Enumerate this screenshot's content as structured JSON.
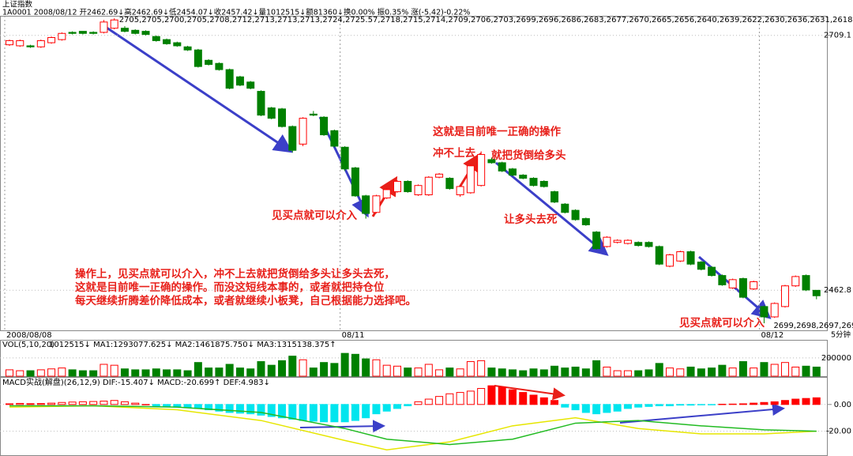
{
  "header": {
    "title": "上证指数",
    "info": "1A0001 2008/08/12 开2462.69↓高2462.69↓低2454.07↓收2457.42↓量1012515↓额81360↓换0.00% 振0.35% 涨(-5.42)-0.22%",
    "period": "5分钟"
  },
  "annotations": {
    "correct": "这就是目前唯一正确的操作",
    "fail": "冲不上去",
    "dump": "就把货倒给多头",
    "die": "让多头去死",
    "buy1": "见买点就可以介入",
    "buy2": "见买点就可以介入",
    "notes": [
      "操作上，见买点就可以介入，冲不上去就把货倒给多头让多头去死，",
      "这就是目前唯一正确的操作。而没这短线本事的，或者就把持仓位",
      "每天继续折腾差价降低成本，或者就继续小板凳，自己根据能力选择吧。"
    ]
  },
  "chart_data": [
    {
      "type": "candlestick",
      "up_color": "#ff0000",
      "down_color": "#008000",
      "ylim": [
        2424,
        2728
      ],
      "yticks": [
        2709.1,
        2462.8
      ],
      "high": [
        2705,
        2705,
        2700,
        2705,
        2708,
        2712,
        2713,
        2713,
        2713,
        2724,
        2725.57,
        2718,
        2715,
        2714,
        2709,
        2706,
        2703,
        2699,
        2696,
        2686,
        2683,
        2677,
        2670,
        2665,
        2656,
        2640,
        2639,
        2622,
        2630,
        2636,
        2631,
        2618,
        2602,
        2582,
        2555,
        2555,
        2561,
        2569,
        2569,
        2565,
        2573,
        2576,
        2572,
        2564,
        2584,
        2597,
        2591,
        2587,
        2581,
        2575,
        2572,
        2569,
        2559,
        2547,
        2541,
        2533,
        2520,
        2515,
        2512,
        2512,
        2510,
        2510,
        2506,
        2498,
        2501,
        2501,
        2491,
        2486,
        2478,
        2474,
        2475,
        2472,
        2448,
        2451,
        2468,
        2477,
        2478,
        2462.69
      ],
      "low": [
        2699,
        2698,
        2697,
        2697,
        2701,
        2704,
        2710,
        2710,
        2710,
        2711,
        2715,
        2712,
        2710,
        2709,
        2703,
        2700,
        2698,
        2694,
        2678,
        2680,
        2675,
        2657,
        2660,
        2657,
        2631,
        2628,
        2620,
        2596,
        2602,
        2631,
        2612,
        2601,
        2578,
        2553,
        2532,
        2537,
        2551,
        2557,
        2557,
        2554,
        2554,
        2571,
        2560,
        2553,
        2556,
        2563,
        2585,
        2577,
        2573,
        2570,
        2563,
        2562,
        2547,
        2537,
        2530,
        2525,
        2502,
        2504,
        2508,
        2507,
        2505,
        2504,
        2487,
        2485,
        2490,
        2487,
        2482,
        2476,
        2467,
        2464,
        2455,
        2463,
        2430.85,
        2436,
        2446,
        2466,
        2462,
        2454.07
      ],
      "categories": [
        "2008/08/08",
        null,
        null,
        null,
        null,
        null,
        null,
        null,
        null,
        null,
        null,
        null,
        null,
        null,
        null,
        null,
        null,
        null,
        null,
        null,
        null,
        null,
        null,
        null,
        null,
        null,
        null,
        null,
        null,
        null,
        null,
        null,
        "08/11",
        null,
        null,
        null,
        null,
        null,
        null,
        null,
        null,
        null,
        null,
        null,
        null,
        null,
        null,
        null,
        null,
        null,
        null,
        null,
        null,
        null,
        null,
        null,
        null,
        null,
        null,
        null,
        null,
        null,
        null,
        null,
        null,
        null,
        null,
        null,
        null,
        null,
        null,
        null,
        "08/12",
        null,
        null,
        null,
        null,
        null
      ],
      "open": [
        2700,
        2699,
        2699,
        2698,
        2702,
        2705,
        2712,
        2713,
        2712,
        2712,
        2716,
        2716,
        2714,
        2713,
        2708,
        2705,
        2702,
        2698,
        2695,
        2685,
        2682,
        2676,
        2669,
        2664,
        2655,
        2639,
        2638,
        2621,
        2604,
        2633,
        2630,
        2617,
        2601,
        2581,
        2554,
        2538,
        2552,
        2558,
        2568,
        2555,
        2555,
        2572,
        2571,
        2555,
        2557,
        2564,
        2589,
        2586,
        2580,
        2574,
        2571,
        2568,
        2558,
        2546,
        2540,
        2532,
        2519,
        2505,
        2509,
        2508,
        2509,
        2509,
        2505,
        2486,
        2491,
        2500,
        2490,
        2485,
        2477,
        2465,
        2474,
        2464,
        2447,
        2437,
        2447,
        2467,
        2477,
        2462.69
      ],
      "close": [
        2704,
        2704,
        2698,
        2704,
        2707,
        2711,
        2711,
        2711,
        2711,
        2722,
        2724,
        2713,
        2711,
        2710,
        2704,
        2701,
        2699,
        2695,
        2679,
        2681,
        2676,
        2658,
        2661,
        2658,
        2632,
        2629,
        2621,
        2598,
        2629,
        2632,
        2613,
        2602,
        2580,
        2554,
        2537,
        2554,
        2560,
        2568,
        2558,
        2564,
        2572,
        2575,
        2561,
        2563,
        2583,
        2594,
        2586,
        2578,
        2574,
        2571,
        2564,
        2563,
        2548,
        2538,
        2531,
        2526,
        2503,
        2514,
        2511,
        2511,
        2506,
        2505,
        2488,
        2497,
        2500,
        2488,
        2483,
        2477,
        2468,
        2473,
        2456,
        2471,
        2437,
        2450,
        2467,
        2476,
        2463,
        2457.42
      ]
    },
    {
      "type": "bar",
      "title": "VOL(5,10,20)",
      "info": "1012515↓ MA1:1293077.625↓ MA2:1461875.750↓ MA3:1315138.375↑",
      "ylim": [
        0,
        390000
      ],
      "yticks": [
        200000
      ],
      "values": [
        70000,
        60000,
        60000,
        70000,
        80000,
        90000,
        70000,
        60000,
        60000,
        130000,
        120000,
        80000,
        70000,
        70000,
        80000,
        70000,
        70000,
        60000,
        150000,
        90000,
        90000,
        130000,
        90000,
        80000,
        160000,
        120000,
        170000,
        220000,
        180000,
        90000,
        150000,
        140000,
        250000,
        240000,
        190000,
        180000,
        120000,
        110000,
        90000,
        90000,
        130000,
        70000,
        90000,
        80000,
        160000,
        170000,
        90000,
        80000,
        70000,
        60000,
        80000,
        70000,
        110000,
        90000,
        100000,
        80000,
        170000,
        100000,
        60000,
        60000,
        60000,
        70000,
        140000,
        90000,
        80000,
        100000,
        80000,
        90000,
        120000,
        90000,
        160000,
        90000,
        150000,
        130000,
        150000,
        100000,
        110000,
        100000
      ]
    },
    {
      "type": "macd",
      "title": "MACD实战(解盘)(26,12,9)",
      "info": "DIF:-15.407↓ MACD:-20.699↑ DEF:4.983↓",
      "pos_color": "#ff0000",
      "neg_color": "#00e5ee",
      "ylim": [
        -38,
        20
      ],
      "yticks": [
        {
          "value": 0,
          "label": "0.00"
        },
        {
          "value": -20,
          "label": "-20.00"
        }
      ],
      "values": [
        0.5,
        0.8,
        0.6,
        0.7,
        1,
        1.5,
        1.8,
        2,
        2.2,
        2.5,
        3,
        2,
        1,
        0,
        -1,
        -1.5,
        -2,
        -2.5,
        -3,
        -4,
        -5,
        -6,
        -6.5,
        -7,
        -8,
        -9,
        -10,
        -11,
        -12,
        -12.5,
        -13,
        -13,
        -13,
        -12,
        -10,
        -7,
        -5,
        -3,
        -1,
        2,
        4,
        6,
        8,
        9,
        10,
        12,
        14,
        13,
        11,
        9,
        7,
        5,
        3,
        -2,
        -4,
        -6,
        -7,
        -6,
        -5,
        -3,
        -2,
        -1.5,
        -1,
        -1,
        -0.5,
        -0.5,
        -0.3,
        -0.2,
        0.2,
        0.3,
        0.5,
        1,
        1.5,
        2,
        3,
        4,
        4.5,
        5
      ],
      "lines": [
        {
          "color": "#e6e600",
          "x": [
            0,
            8,
            16,
            24,
            32,
            36,
            42,
            48,
            54,
            60,
            66,
            72,
            77
          ],
          "values": [
            -2,
            -1,
            -4,
            -12,
            -27,
            -34,
            -28,
            -16,
            -10,
            -18,
            -22,
            -22,
            -20
          ]
        },
        {
          "color": "#22bb22",
          "x": [
            0,
            8,
            16,
            24,
            32,
            36,
            42,
            48,
            54,
            60,
            66,
            72,
            77
          ],
          "values": [
            -1,
            -1,
            -2,
            -6,
            -18,
            -26,
            -30,
            -26,
            -14,
            -12,
            -16,
            -19,
            -20
          ]
        }
      ]
    }
  ]
}
